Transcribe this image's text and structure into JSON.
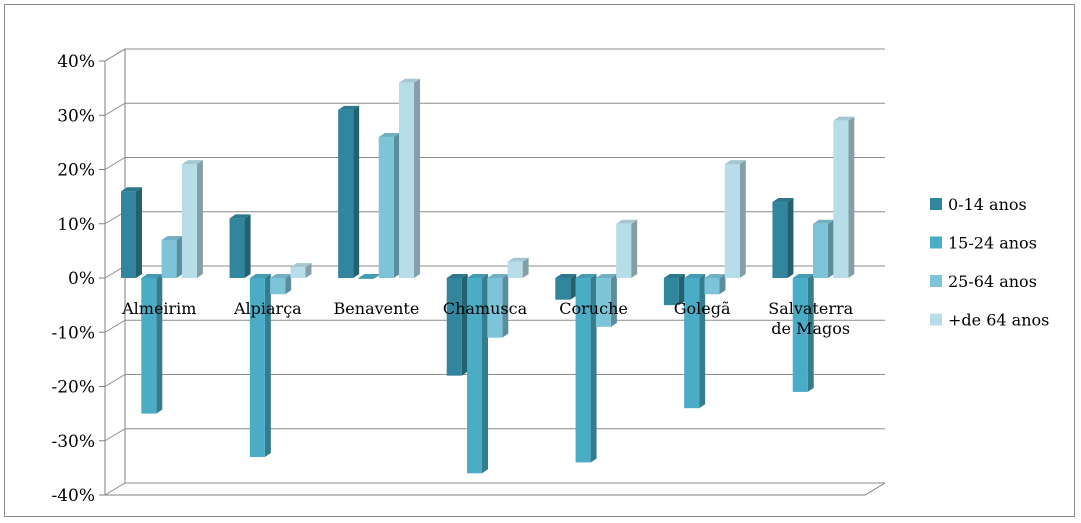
{
  "chart_data": {
    "type": "bar",
    "style": "3d-clustered-column",
    "categories": [
      "Almeirim",
      "Alpiarça",
      "Benavente",
      "Chamusca",
      "Coruche",
      "Golegã",
      "Salvaterra de Magos"
    ],
    "category_lines": [
      [
        "Almeirim"
      ],
      [
        "Alpiarça"
      ],
      [
        "Benavente"
      ],
      [
        "Chamusca"
      ],
      [
        "Coruche"
      ],
      [
        "Golegã"
      ],
      [
        "Salvaterra",
        "de Magos"
      ]
    ],
    "series": [
      {
        "name": "0-14 anos",
        "color": "#31859c",
        "values": [
          16,
          11,
          31,
          -18,
          -4,
          -5,
          14
        ]
      },
      {
        "name": "15-24 anos",
        "color": "#4bacc6",
        "values": [
          -25,
          -33,
          0,
          -36,
          -34,
          -24,
          -21
        ]
      },
      {
        "name": "25-64 anos",
        "color": "#7ec4d8",
        "values": [
          7,
          -3,
          26,
          -11,
          -9,
          -3,
          10
        ]
      },
      {
        "name": "+de 64 anos",
        "color": "#b7dde8",
        "values": [
          21,
          2,
          36,
          3,
          10,
          21,
          29
        ]
      }
    ],
    "yticks": [
      "40%",
      "30%",
      "20%",
      "10%",
      "0%",
      "-10%",
      "-20%",
      "-30%",
      "-40%"
    ],
    "ylim": [
      -40,
      40
    ],
    "y_unit": "%",
    "grid": true,
    "legend": "right",
    "title": "",
    "xlabel": "",
    "ylabel": ""
  }
}
